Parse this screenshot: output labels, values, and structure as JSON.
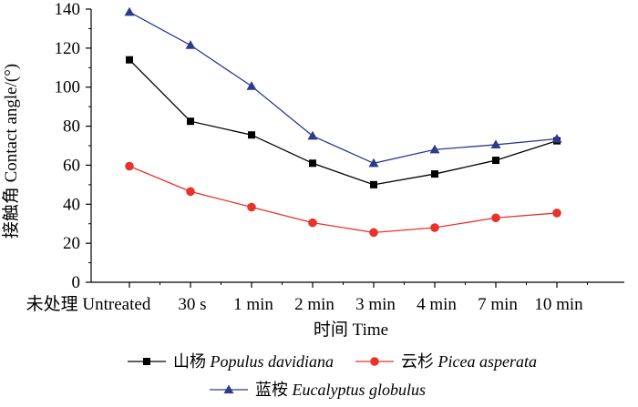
{
  "chart_data": {
    "type": "line",
    "title": "",
    "xlabel": "时间 Time",
    "ylabel": "接触角 Contact angle/(°)",
    "categories": [
      "未处理 Untreated",
      "30 s",
      "1 min",
      "2 min",
      "3 min",
      "4 min",
      "7 min",
      "10 min"
    ],
    "ylim": [
      0,
      140
    ],
    "yticks": [
      0,
      20,
      40,
      60,
      80,
      100,
      120,
      140
    ],
    "legend_position": "bottom",
    "series": [
      {
        "name_cn": "山杨",
        "name_latin": "Populus davidiana",
        "color": "#000000",
        "marker": "square",
        "values": [
          114,
          82.5,
          75.5,
          61,
          50,
          55.5,
          62.5,
          72.5
        ]
      },
      {
        "name_cn": "云杉",
        "name_latin": "Picea asperata",
        "color": "#e8322a",
        "marker": "circle",
        "values": [
          59.5,
          46.5,
          38.5,
          30.5,
          25.5,
          28,
          33,
          35.5
        ]
      },
      {
        "name_cn": "蓝桉",
        "name_latin": "Eucalyptus globulus",
        "color": "#2e3a8c",
        "marker": "triangle",
        "values": [
          138.5,
          121.5,
          100.5,
          75,
          61,
          68,
          70.5,
          73.5
        ]
      }
    ]
  }
}
